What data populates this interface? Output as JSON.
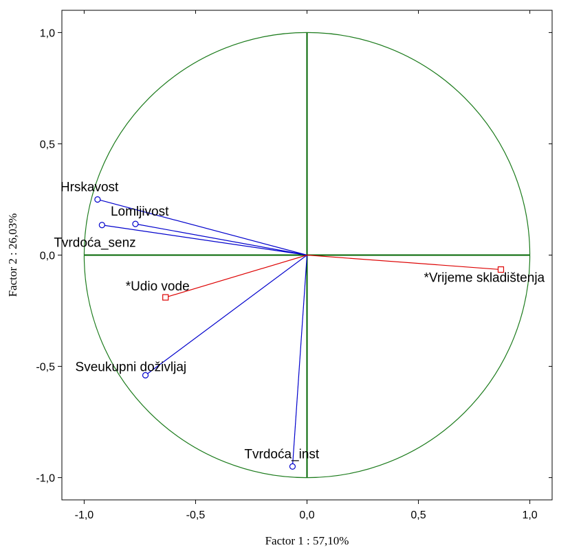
{
  "chart_data": {
    "type": "scatter",
    "title": "",
    "xlabel": "Factor 1 : 57,10%",
    "ylabel": "Factor 2 : 26,03%",
    "xlim": [
      -1.1,
      1.1
    ],
    "ylim": [
      -1.1,
      1.1
    ],
    "x_ticks": [
      {
        "value": -1.0,
        "label": "-1,0"
      },
      {
        "value": -0.5,
        "label": "-0,5"
      },
      {
        "value": 0.0,
        "label": "0,0"
      },
      {
        "value": 0.5,
        "label": "0,5"
      },
      {
        "value": 1.0,
        "label": "1,0"
      }
    ],
    "y_ticks": [
      {
        "value": 1.0,
        "label": "1,0"
      },
      {
        "value": 0.5,
        "label": "0,5"
      },
      {
        "value": 0.0,
        "label": "0,0"
      },
      {
        "value": -0.5,
        "label": "-0,5"
      },
      {
        "value": -1.0,
        "label": "-1,0"
      }
    ],
    "unit_circle": true,
    "grid": false,
    "colors": {
      "circle": "#1a7a1a",
      "axes": "#006400",
      "active": "#0000cc",
      "supplementary": "#dd0000"
    },
    "series": [
      {
        "marker": "circle",
        "color": "#0000cc",
        "points": [
          {
            "label": "Hrskavost",
            "x": -0.94,
            "y": 0.25
          },
          {
            "label": "Lomljivost",
            "x": -0.77,
            "y": 0.14
          },
          {
            "label": "Tvrdoća_senz",
            "x": -0.92,
            "y": 0.135
          },
          {
            "label": "Sveukupni doživljaj",
            "x": -0.725,
            "y": -0.54
          },
          {
            "label": "Tvrdoća_inst",
            "x": -0.065,
            "y": -0.95
          }
        ]
      },
      {
        "marker": "square",
        "color": "#dd0000",
        "points": [
          {
            "label": "*Vrijeme skladištenja",
            "x": 0.87,
            "y": -0.065
          },
          {
            "label": "*Udio vode",
            "x": -0.635,
            "y": -0.19
          }
        ]
      }
    ]
  }
}
